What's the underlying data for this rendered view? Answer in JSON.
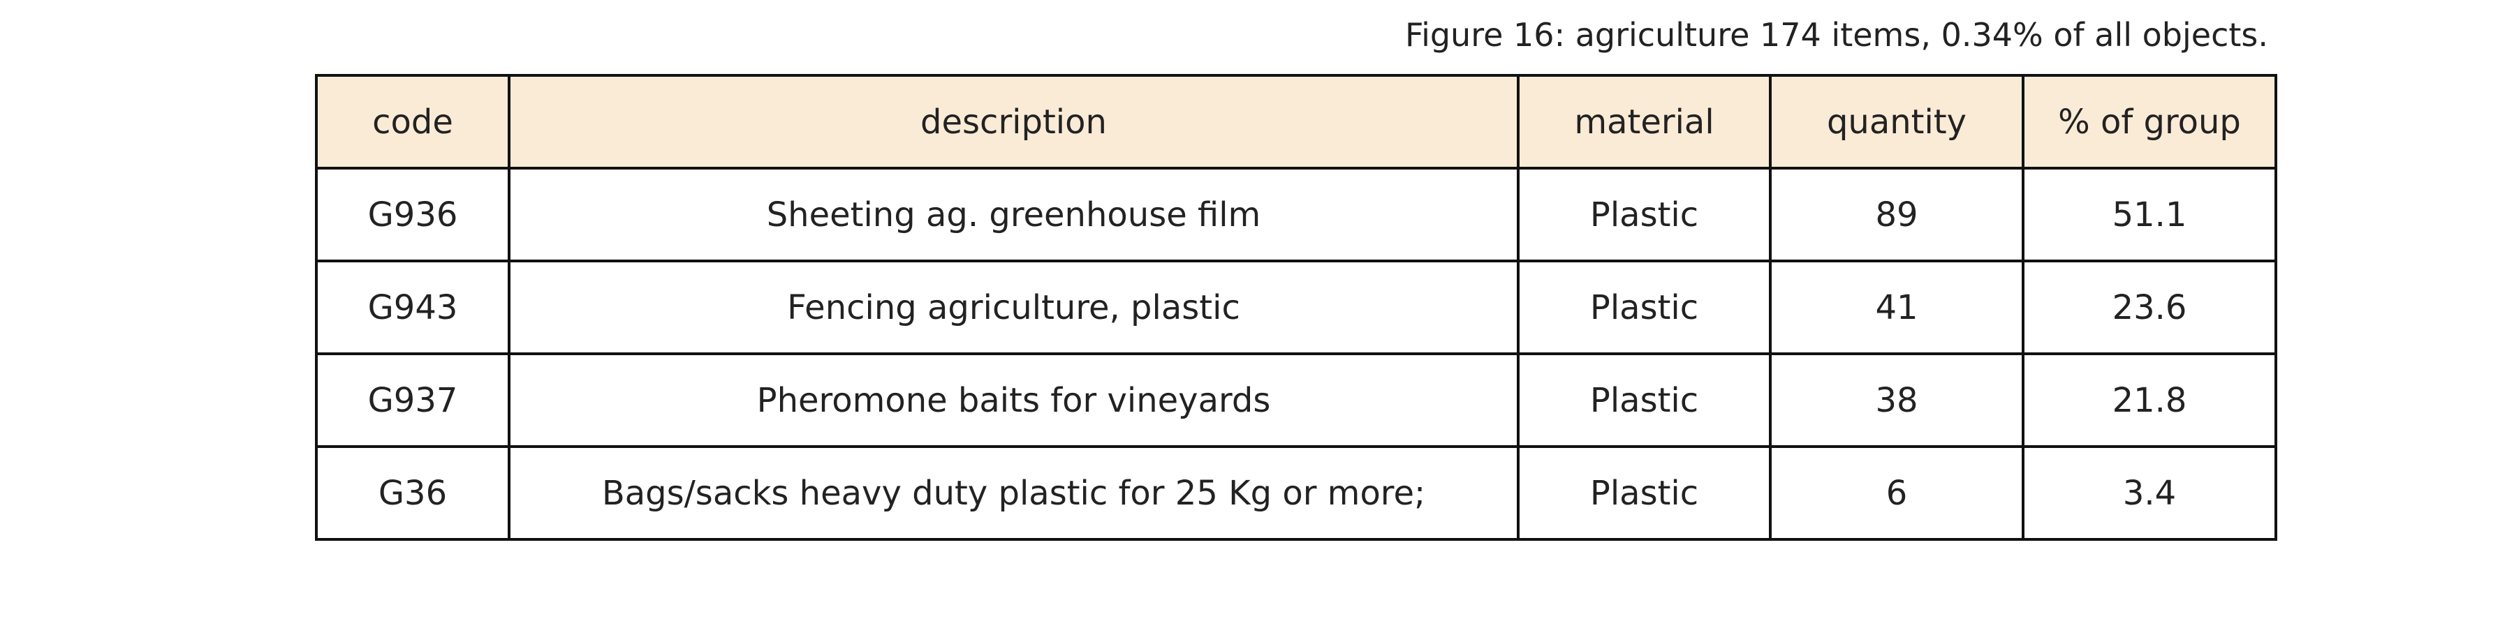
{
  "chart_data": {
    "type": "table",
    "title": "Figure 16: agriculture 174 items, 0.34% of all objects.",
    "columns": [
      "code",
      "description",
      "material",
      "quantity",
      "% of group"
    ],
    "rows": [
      [
        "G936",
        "Sheeting ag. greenhouse film",
        "Plastic",
        "89",
        "51.1"
      ],
      [
        "G943",
        "Fencing agriculture, plastic",
        "Plastic",
        "41",
        "23.6"
      ],
      [
        "G937",
        "Pheromone baits for vineyards",
        "Plastic",
        "38",
        "21.8"
      ],
      [
        "G36",
        "Bags/sacks heavy duty plastic for 25 Kg or more;",
        "Plastic",
        "6",
        "3.4"
      ]
    ],
    "header_color": "#faebd7"
  }
}
